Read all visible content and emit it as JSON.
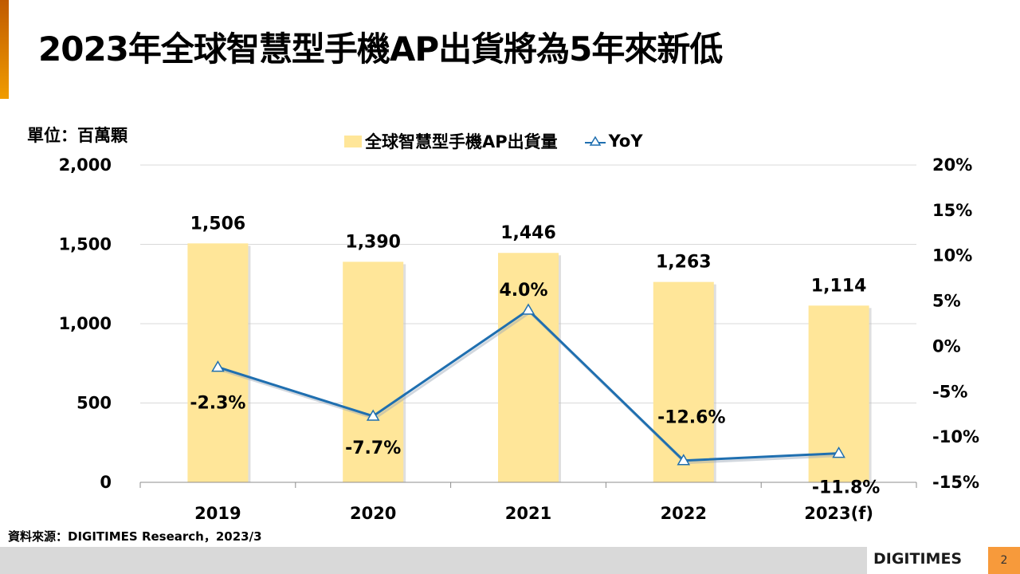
{
  "page": {
    "title": "2023年全球智慧型手機AP出貨將為5年來新低",
    "unit_label": "單位：百萬顆",
    "source": "資料來源：DIGITIMES Research，2023/3",
    "logo_text": "DIGITIMES",
    "page_number": "2"
  },
  "colors": {
    "bar": "#ffe699",
    "line": "#1f6fb0",
    "accent": "#f09c00",
    "footer": "#d9d9d9",
    "page_badge": "#f79a3b"
  },
  "chart_data": {
    "type": "bar",
    "title": "",
    "categories": [
      "2019",
      "2020",
      "2021",
      "2022",
      "2023(f)"
    ],
    "series": [
      {
        "name": "全球智慧型手機AP出貨量",
        "type": "bar",
        "axis": "left",
        "values": [
          1506,
          1390,
          1446,
          1263,
          1114
        ],
        "labels": [
          "1,506",
          "1,390",
          "1,446",
          "1,263",
          "1,114"
        ]
      },
      {
        "name": "YoY",
        "type": "line",
        "axis": "right",
        "marker": "triangle",
        "values": [
          -2.3,
          -7.7,
          4.0,
          -12.6,
          -11.8
        ],
        "labels": [
          "-2.3%",
          "-7.7%",
          "4.0%",
          "-12.6%",
          "-11.8%"
        ]
      }
    ],
    "left_axis": {
      "ylim": [
        0,
        2000
      ],
      "ticks": [
        0,
        500,
        1000,
        1500,
        2000
      ],
      "tick_labels": [
        "0",
        "500",
        "1,000",
        "1,500",
        "2,000"
      ]
    },
    "right_axis": {
      "ylim": [
        -15,
        20
      ],
      "ticks": [
        -15,
        -10,
        -5,
        0,
        5,
        10,
        15,
        20
      ],
      "tick_labels": [
        "-15%",
        "-10%",
        "-5%",
        "0%",
        "5%",
        "10%",
        "15%",
        "20%"
      ]
    },
    "grid": true,
    "legend": "top-center"
  }
}
